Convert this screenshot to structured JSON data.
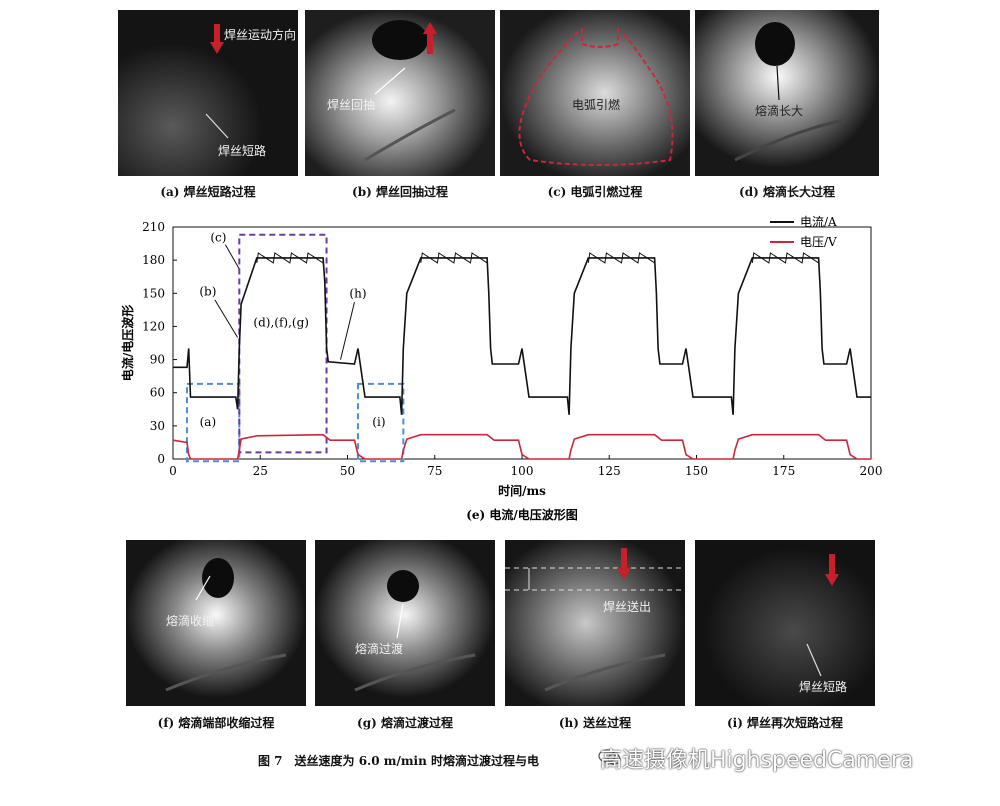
{
  "top_panels": [
    {
      "caption": "(a) 焊丝短路过程",
      "labels": [
        "焊丝运动方向",
        "焊丝短路"
      ]
    },
    {
      "caption": "(b) 焊丝回抽过程",
      "labels": [
        "焊丝回抽"
      ]
    },
    {
      "caption": "(c) 电弧引燃过程",
      "labels": [
        "电弧引燃"
      ]
    },
    {
      "caption": "(d) 熔滴长大过程",
      "labels": [
        "熔滴长大"
      ]
    }
  ],
  "bottom_panels": [
    {
      "caption": "(f) 熔滴端部收缩过程",
      "labels": [
        "熔滴收缩"
      ]
    },
    {
      "caption": "(g) 熔滴过渡过程",
      "labels": [
        "熔滴过渡"
      ]
    },
    {
      "caption": "(h) 送丝过程",
      "labels": [
        "焊丝送出"
      ]
    },
    {
      "caption": "(i) 焊丝再次短路过程",
      "labels": [
        "焊丝短路"
      ]
    }
  ],
  "figure_caption": "图 7　送丝速度为 6.0 m/min 时熔滴过渡过程与电",
  "watermark": "高速摄像机HighspeedCamera",
  "colors": {
    "current": "#111111",
    "voltage": "#c8283a",
    "purple_box": "#6a3aa0",
    "blue_box": "#4a8fd6",
    "arrow": "#c8202a"
  },
  "chart_data": {
    "type": "line",
    "title": "(e) 电流/电压波形图",
    "xlabel": "时间/ms",
    "ylabel": "电流/电压波形",
    "xlim": [
      0,
      200
    ],
    "ylim": [
      0,
      210
    ],
    "x_ticks": [
      0,
      25,
      50,
      75,
      100,
      125,
      150,
      175,
      200
    ],
    "y_ticks": [
      0,
      30,
      60,
      90,
      120,
      150,
      180,
      210
    ],
    "legend_position": "top-right",
    "series": [
      {
        "name": "电流/A",
        "color": "#111111",
        "x": [
          0,
          4,
          4.5,
          5,
          18,
          18.5,
          19,
          19.5,
          24,
          43,
          43.5,
          44,
          44.5,
          52,
          53,
          55,
          65,
          65.5,
          66,
          67,
          71,
          90,
          90.5,
          91,
          91.5,
          99,
          100,
          102,
          113,
          113.5,
          114,
          115,
          119,
          138,
          138.5,
          139,
          139.5,
          146,
          147,
          149,
          160,
          160.5,
          161,
          162,
          166,
          185,
          185.5,
          186,
          186.5,
          193,
          194,
          196,
          200
        ],
        "y": [
          83,
          83,
          100,
          56,
          56,
          45,
          100,
          140,
          182,
          182,
          160,
          100,
          88,
          86,
          100,
          56,
          56,
          40,
          100,
          150,
          182,
          182,
          150,
          100,
          86,
          86,
          100,
          56,
          56,
          40,
          100,
          150,
          182,
          182,
          150,
          100,
          86,
          86,
          100,
          56,
          56,
          40,
          100,
          150,
          182,
          182,
          150,
          100,
          86,
          86,
          100,
          56,
          56
        ]
      },
      {
        "name": "电压/V",
        "color": "#c8283a",
        "x": [
          0,
          4,
          4.5,
          5,
          18,
          18.5,
          19,
          19.5,
          24,
          43,
          45,
          52,
          53,
          55,
          65,
          65.5,
          66,
          67,
          71,
          90,
          92,
          99,
          100,
          102,
          113,
          113.5,
          114,
          115,
          119,
          138,
          140,
          146,
          147,
          149,
          160,
          160.5,
          161,
          162,
          166,
          185,
          187,
          193,
          194,
          196,
          200
        ],
        "y": [
          17,
          15,
          4,
          0,
          0,
          0,
          8,
          18,
          21,
          22,
          17,
          17,
          4,
          0,
          0,
          0,
          8,
          18,
          22,
          22,
          17,
          17,
          4,
          0,
          0,
          0,
          8,
          18,
          22,
          22,
          17,
          17,
          4,
          0,
          0,
          0,
          8,
          18,
          22,
          22,
          17,
          17,
          4,
          0,
          0
        ]
      }
    ],
    "annotations": [
      {
        "text": "(c)",
        "x": 13,
        "y": 197
      },
      {
        "text": "(b)",
        "x": 10,
        "y": 148
      },
      {
        "text": "(d),(f),(g)",
        "x": 31,
        "y": 120
      },
      {
        "text": "(h)",
        "x": 53,
        "y": 146
      },
      {
        "text": "(a)",
        "x": 10,
        "y": 30
      },
      {
        "text": "(i)",
        "x": 59,
        "y": 30
      }
    ]
  }
}
